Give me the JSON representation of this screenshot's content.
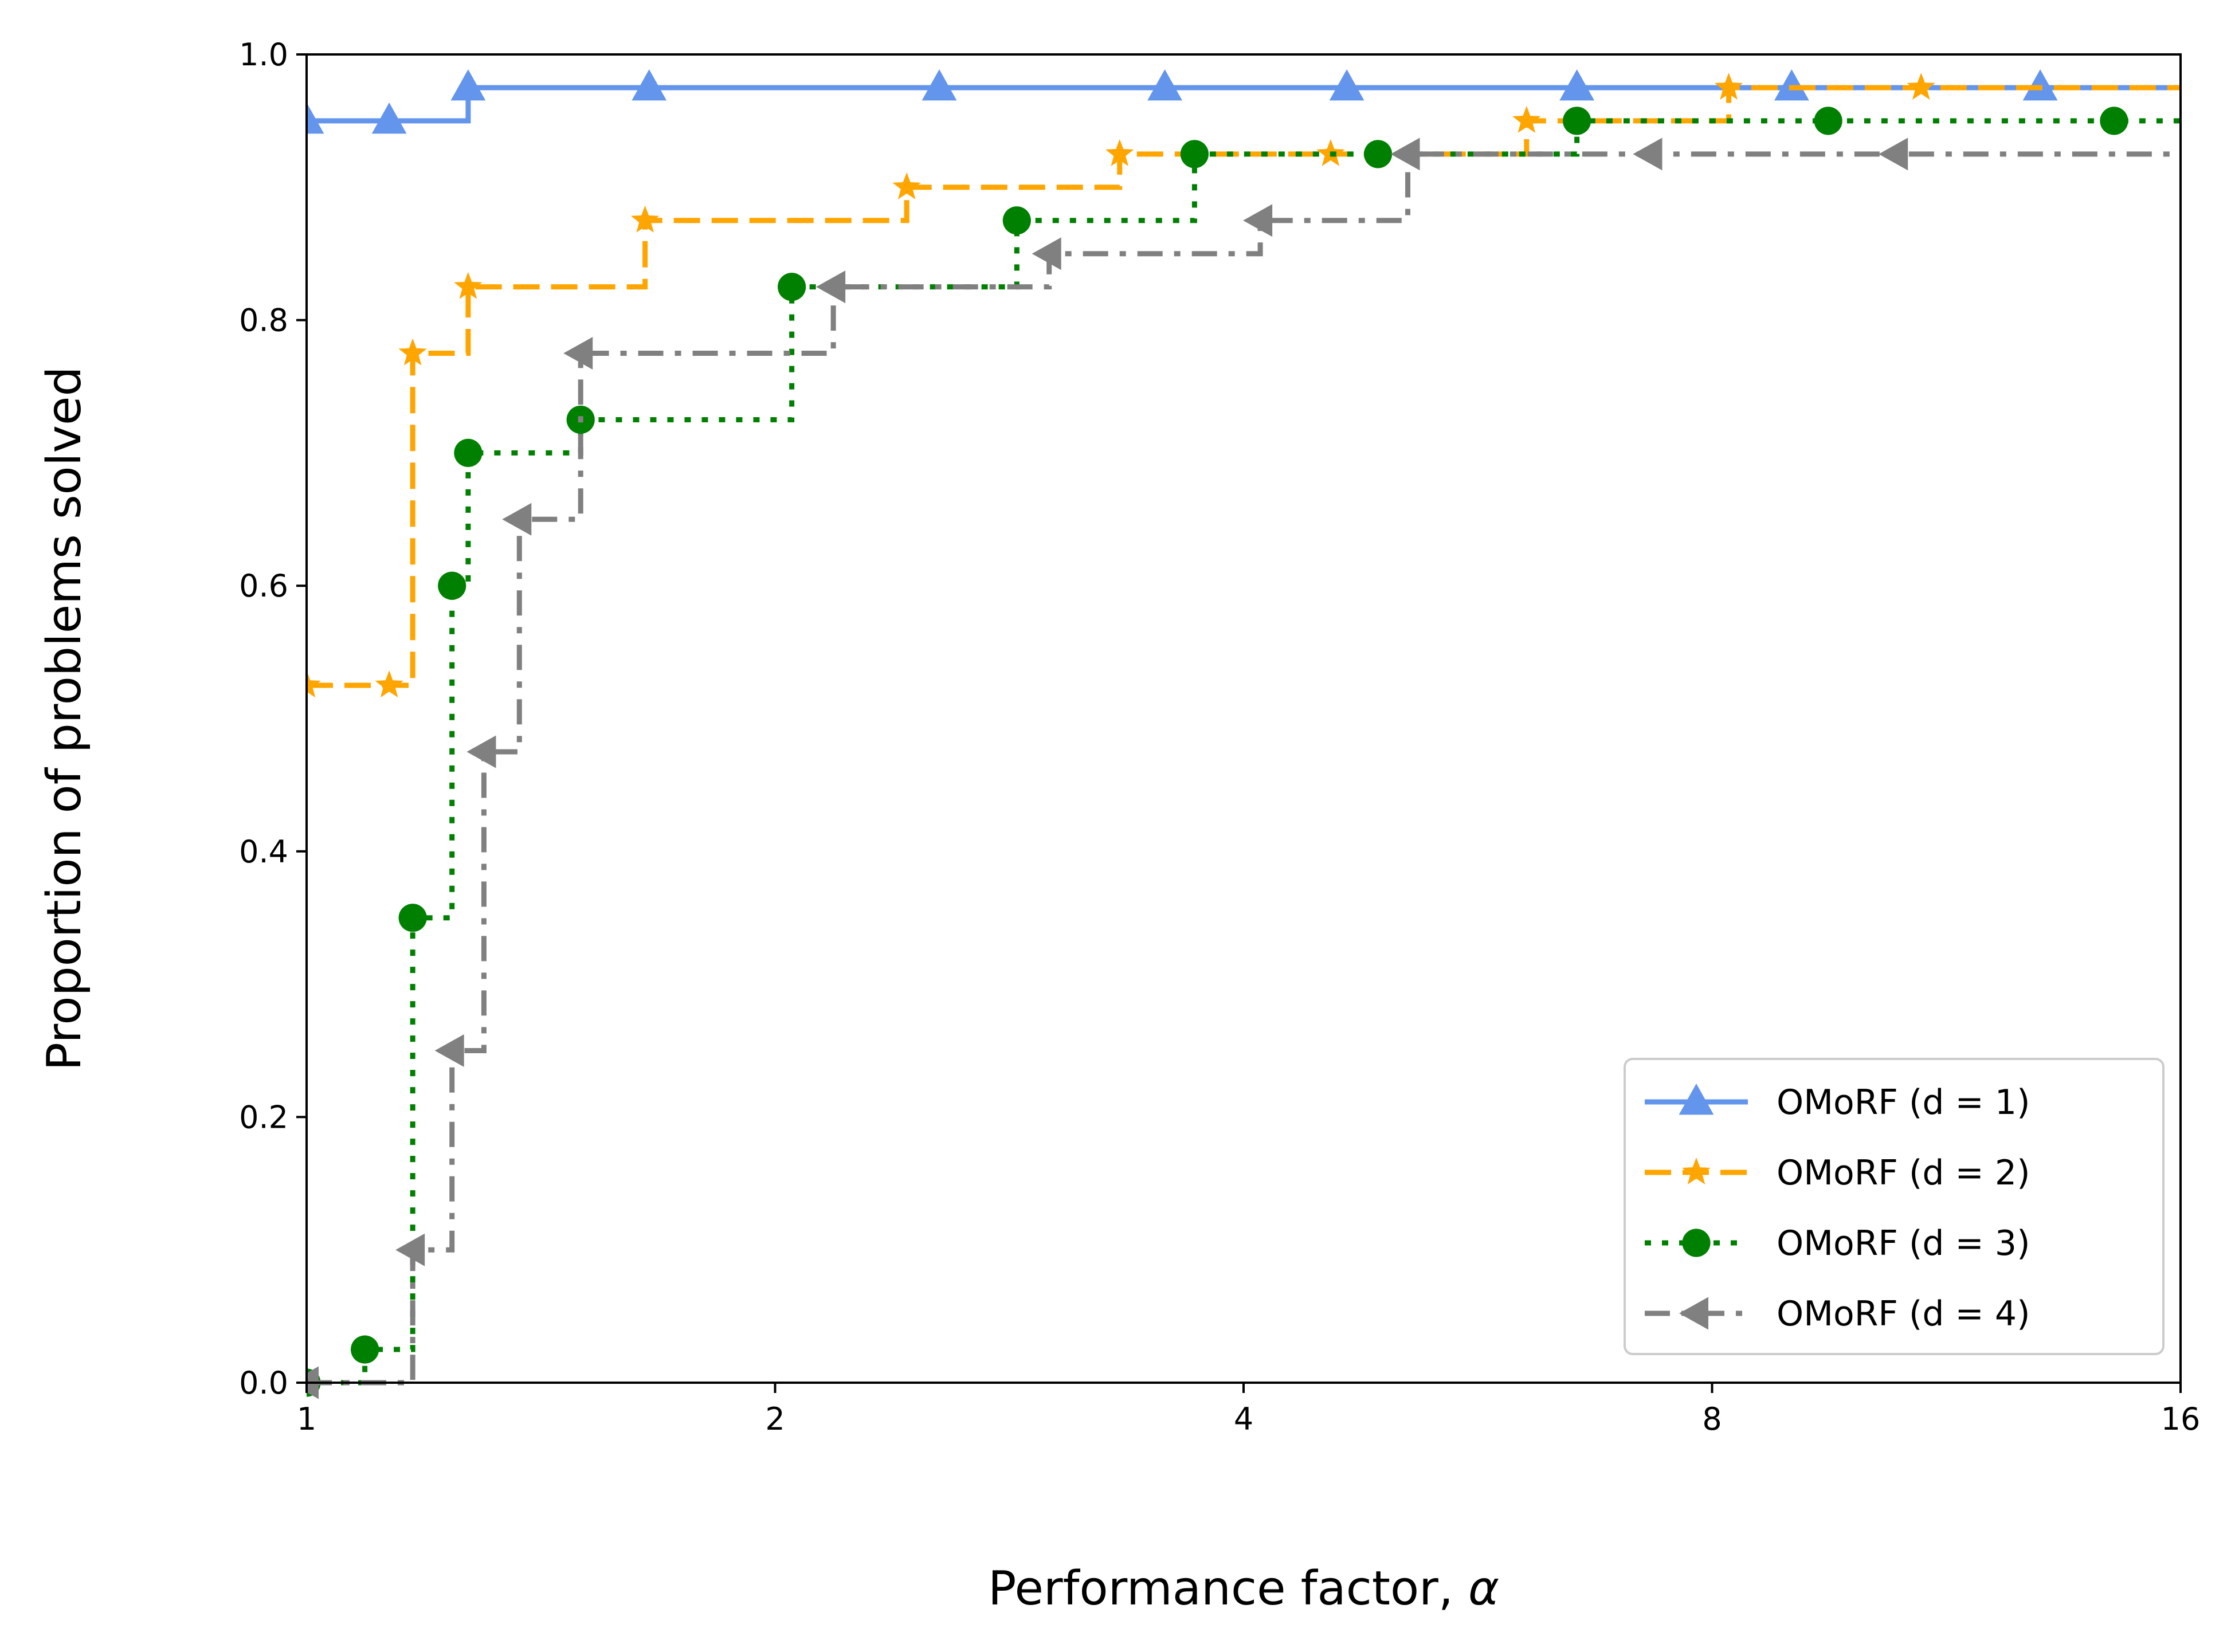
{
  "chart_data": {
    "type": "line",
    "step": true,
    "xscale": "log2",
    "xlim": [
      1,
      16
    ],
    "ylim": [
      0,
      1
    ],
    "xticks": [
      1,
      2,
      4,
      8,
      16
    ],
    "xtick_labels": [
      "1",
      "2",
      "4",
      "8",
      "16"
    ],
    "yticks": [
      0,
      0.2,
      0.4,
      0.6,
      0.8,
      1.0
    ],
    "ytick_labels": [
      "0.0",
      "0.2",
      "0.4",
      "0.6",
      "0.8",
      "1.0"
    ],
    "xlabel": "Performance factor, ",
    "xlabel_symbol": "α",
    "ylabel": "Proportion of problems solved",
    "legend_position": "lower-right",
    "series": [
      {
        "name": "OMoRF (d = 1)",
        "color": "#6495ED",
        "style": "solid",
        "marker": "triangle-up",
        "x": [
          1.0,
          1.13,
          1.27,
          1.66,
          2.55,
          3.56,
          4.66,
          6.55,
          9.0,
          13.0,
          16.0
        ],
        "y": [
          0.95,
          0.95,
          0.975,
          0.975,
          0.975,
          0.975,
          0.975,
          0.975,
          0.975,
          0.975,
          0.975
        ]
      },
      {
        "name": "OMoRF (d = 2)",
        "color": "#FFA500",
        "style": "dashed",
        "marker": "star",
        "x": [
          1.0,
          1.13,
          1.17,
          1.27,
          1.65,
          2.43,
          3.33,
          4.55,
          6.08,
          8.2,
          10.9,
          16.0
        ],
        "y": [
          0.525,
          0.525,
          0.775,
          0.825,
          0.875,
          0.9,
          0.925,
          0.925,
          0.95,
          0.975,
          0.975,
          0.975
        ]
      },
      {
        "name": "OMoRF (d = 3)",
        "color": "#008000",
        "style": "dotted",
        "marker": "circle",
        "x": [
          1.0,
          1.09,
          1.17,
          1.24,
          1.27,
          1.5,
          2.05,
          2.86,
          3.72,
          4.88,
          6.55,
          9.5,
          14.5,
          16.0
        ],
        "y": [
          0.0,
          0.025,
          0.35,
          0.6,
          0.7,
          0.725,
          0.825,
          0.875,
          0.925,
          0.925,
          0.95,
          0.95,
          0.95,
          0.95
        ]
      },
      {
        "name": "OMoRF (d = 4)",
        "color": "#808080",
        "style": "dashdot",
        "marker": "triangle-left",
        "x": [
          1.0,
          1.17,
          1.24,
          1.3,
          1.37,
          1.5,
          2.18,
          3.0,
          4.1,
          5.1,
          7.3,
          10.5,
          16.0
        ],
        "y": [
          0.0,
          0.1,
          0.25,
          0.475,
          0.65,
          0.775,
          0.825,
          0.85,
          0.875,
          0.925,
          0.925,
          0.925,
          0.925
        ]
      }
    ]
  }
}
